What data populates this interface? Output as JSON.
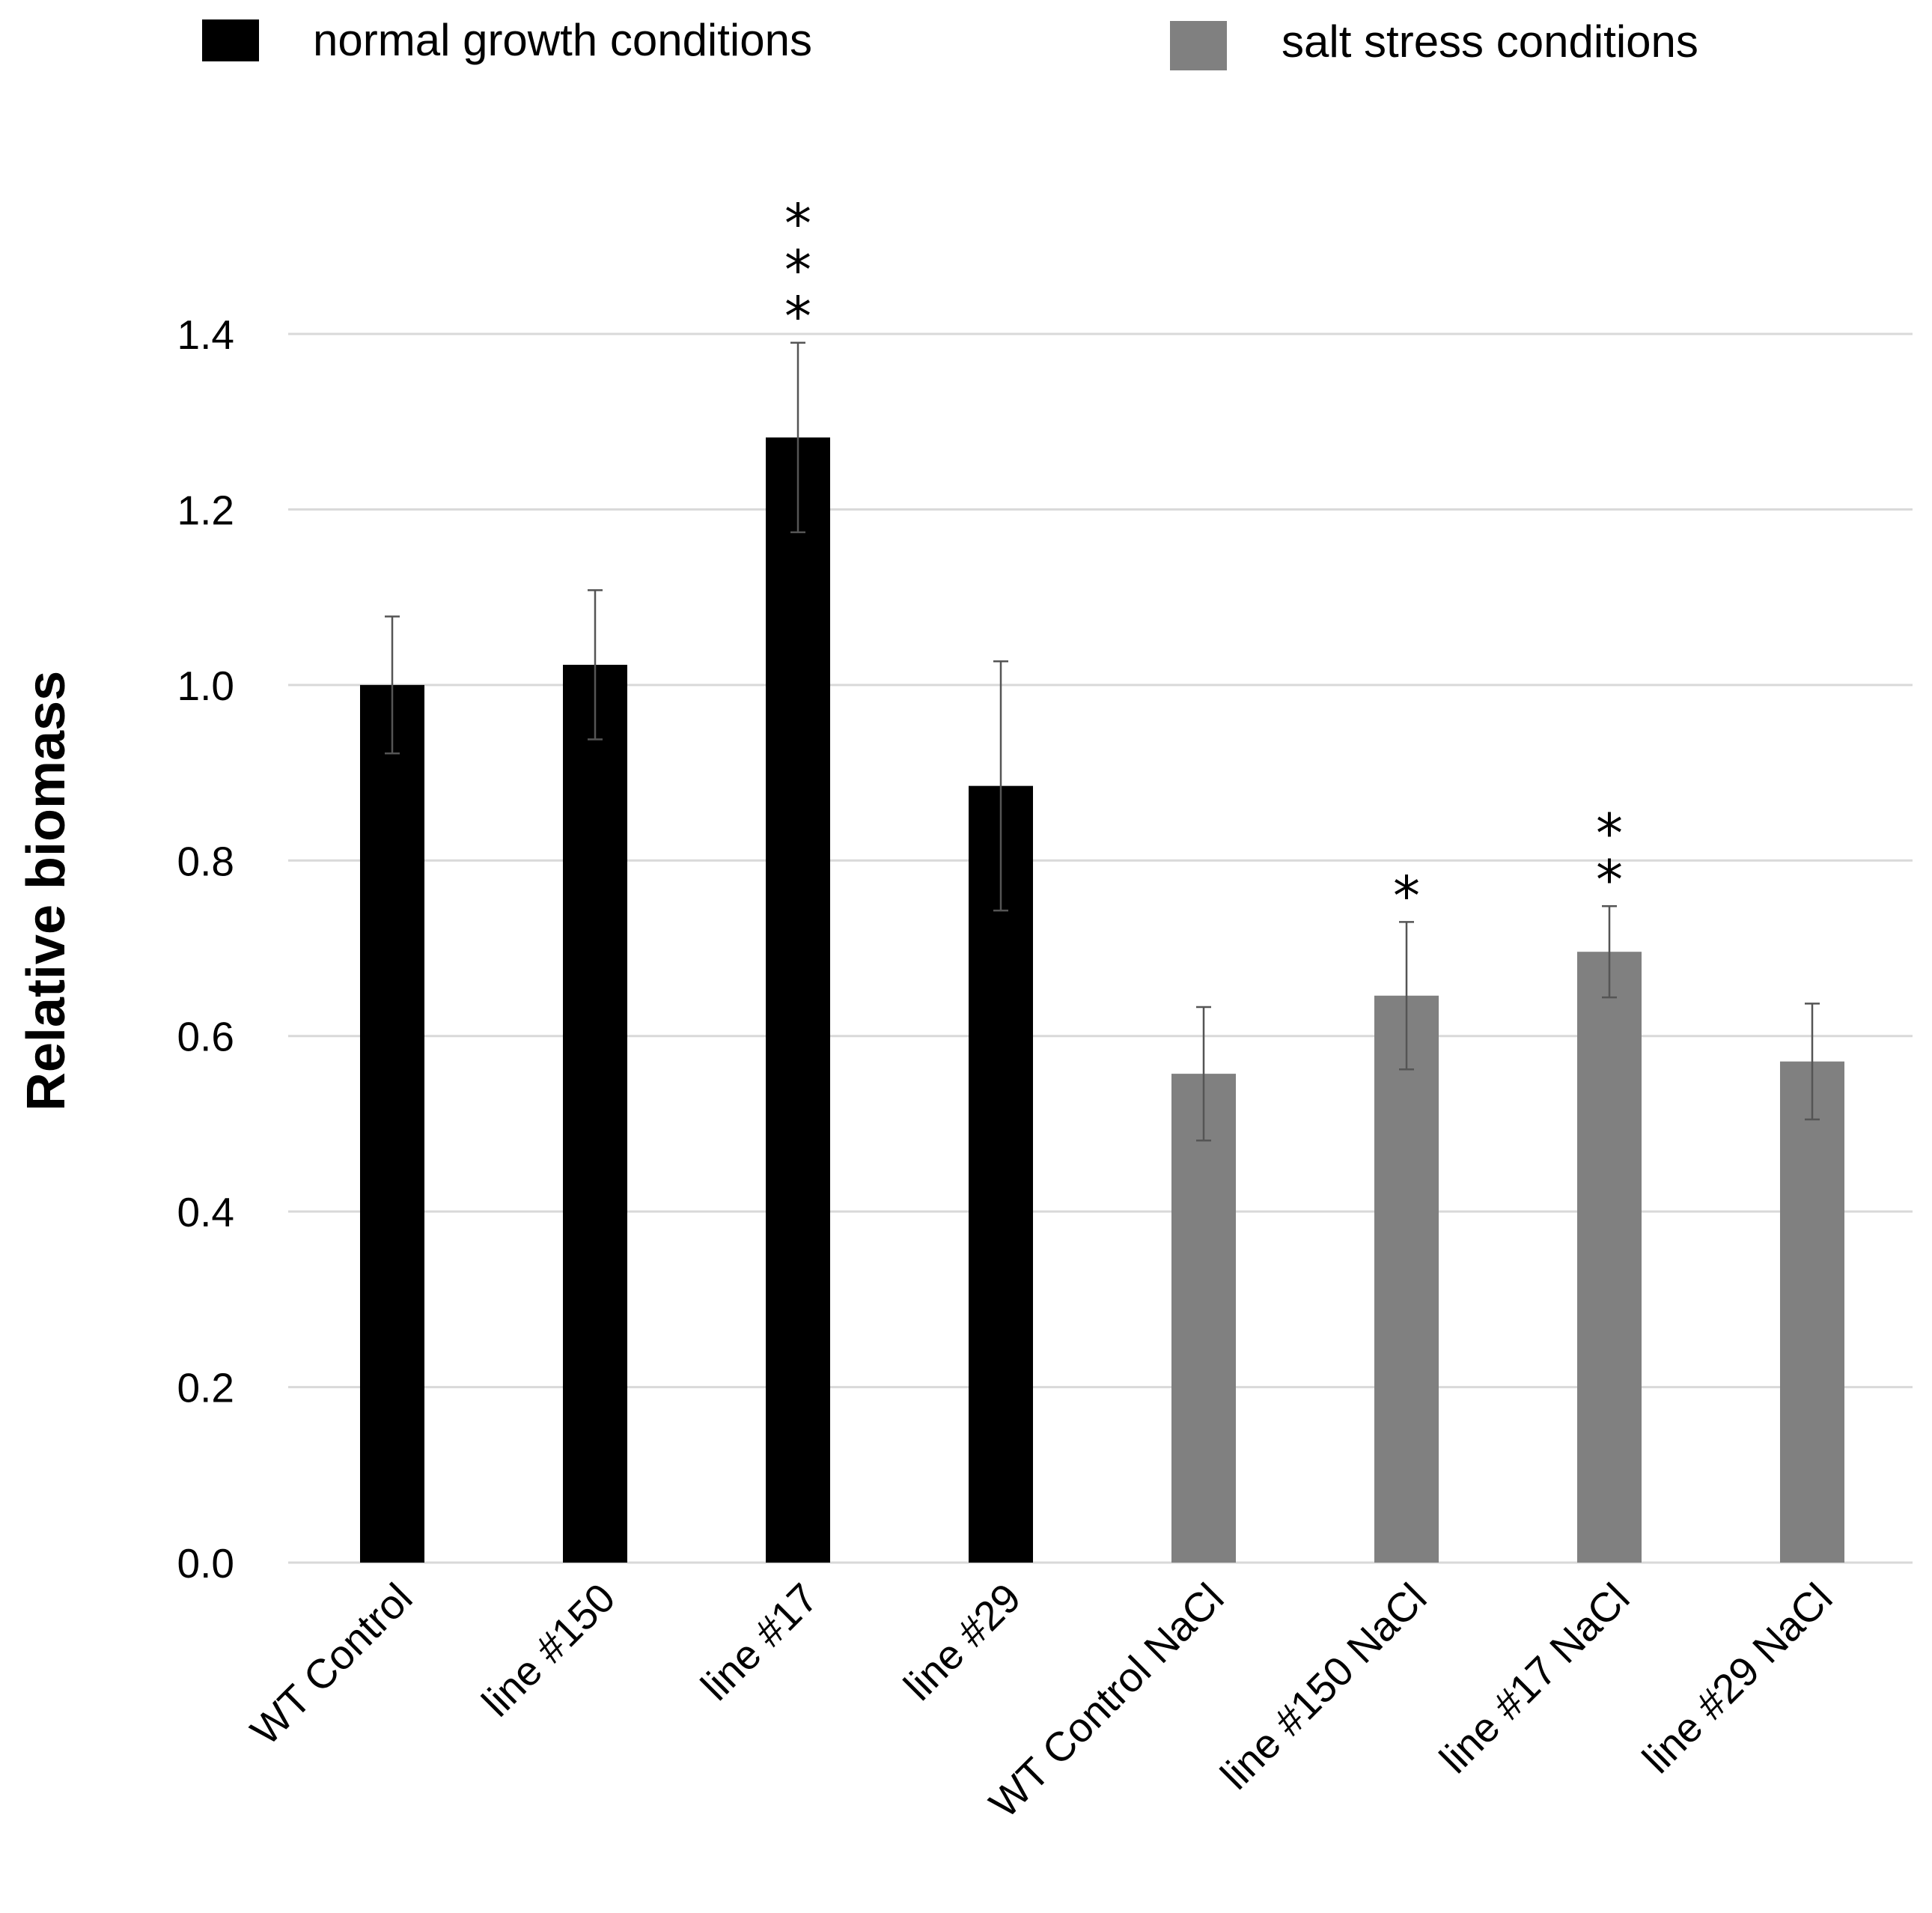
{
  "chart_data": {
    "type": "bar",
    "title": "",
    "xlabel": "",
    "ylabel": "Relative biomass",
    "ylim": [
      0,
      1.4
    ],
    "yticks": [
      "0.0",
      "0.2",
      "0.4",
      "0.6",
      "0.8",
      "1.0",
      "1.2",
      "1.4"
    ],
    "ytick_values": [
      0,
      0.2,
      0.4,
      0.6,
      0.8,
      1.0,
      1.2,
      1.4
    ],
    "grid": true,
    "legend_position": "top",
    "categories": [
      "WT Control",
      "line #150",
      "line #17",
      "line #29",
      "WT Control NaCl",
      "line #150 NaCl",
      "line #17 NaCl",
      "line #29 NaCl"
    ],
    "values": [
      1.0,
      1.023,
      1.282,
      0.885,
      0.557,
      0.646,
      0.696,
      0.571
    ],
    "errors": [
      0.078,
      0.085,
      0.108,
      0.142,
      0.076,
      0.084,
      0.052,
      0.066
    ],
    "groups": [
      "normal",
      "normal",
      "normal",
      "normal",
      "salt",
      "salt",
      "salt",
      "salt"
    ],
    "significance": [
      "",
      "",
      "***",
      "",
      "",
      "*",
      "**",
      ""
    ],
    "series": [
      {
        "name": "normal growth conditions",
        "color": "#000000"
      },
      {
        "name": "salt stress conditions",
        "color": "#808080"
      }
    ]
  }
}
